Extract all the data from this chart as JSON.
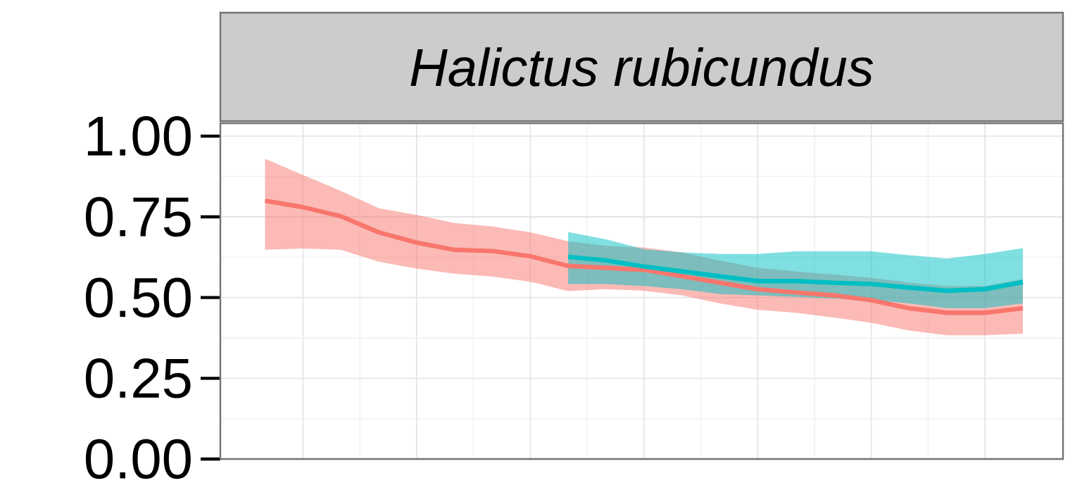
{
  "chart_data": {
    "type": "line",
    "title": "Halictus rubicundus",
    "categories": [
      null,
      null,
      null,
      null,
      null,
      null,
      null,
      null,
      null,
      null,
      null,
      null,
      null,
      null,
      null,
      null,
      null,
      null,
      null,
      null,
      null
    ],
    "series": [
      {
        "color": "#f8766d",
        "values": [
          0.8,
          0.78,
          0.752,
          0.702,
          0.67,
          0.648,
          0.644,
          0.628,
          0.598,
          0.592,
          0.586,
          0.566,
          0.546,
          0.526,
          0.516,
          0.507,
          0.492,
          0.467,
          0.453,
          0.453,
          0.467
        ],
        "upper": [
          0.93,
          0.88,
          0.83,
          0.777,
          0.756,
          0.731,
          0.72,
          0.702,
          0.674,
          0.66,
          0.655,
          0.64,
          0.615,
          0.592,
          0.581,
          0.571,
          0.561,
          0.546,
          0.536,
          0.536,
          0.557
        ],
        "lower": [
          0.648,
          0.652,
          0.648,
          0.611,
          0.59,
          0.574,
          0.565,
          0.549,
          0.52,
          0.526,
          0.521,
          0.507,
          0.482,
          0.462,
          0.453,
          0.438,
          0.422,
          0.398,
          0.383,
          0.383,
          0.388
        ]
      },
      {
        "color": "#00bfc4",
        "values": [
          null,
          null,
          null,
          null,
          null,
          null,
          null,
          null,
          0.626,
          0.615,
          0.596,
          0.581,
          0.566,
          0.551,
          0.551,
          0.546,
          0.542,
          0.531,
          0.521,
          0.526,
          0.548
        ],
        "upper": [
          null,
          null,
          null,
          null,
          null,
          null,
          null,
          null,
          0.703,
          0.68,
          0.65,
          0.64,
          0.635,
          0.635,
          0.643,
          0.643,
          0.643,
          0.631,
          0.621,
          0.635,
          0.653
        ],
        "lower": [
          null,
          null,
          null,
          null,
          null,
          null,
          null,
          null,
          0.542,
          0.542,
          0.536,
          0.526,
          0.511,
          0.507,
          0.502,
          0.497,
          0.492,
          0.482,
          0.467,
          0.467,
          0.482
        ]
      }
    ],
    "ylim": [
      0,
      1.04
    ],
    "yticks": [
      {
        "value": 0,
        "label": "0.00"
      },
      {
        "value": 0.25,
        "label": "0.25"
      },
      {
        "value": 0.5,
        "label": "0.50"
      },
      {
        "value": 0.75,
        "label": "0.75"
      },
      {
        "value": 1,
        "label": "1.00"
      }
    ],
    "tick_labels": "y",
    "grid": true
  }
}
